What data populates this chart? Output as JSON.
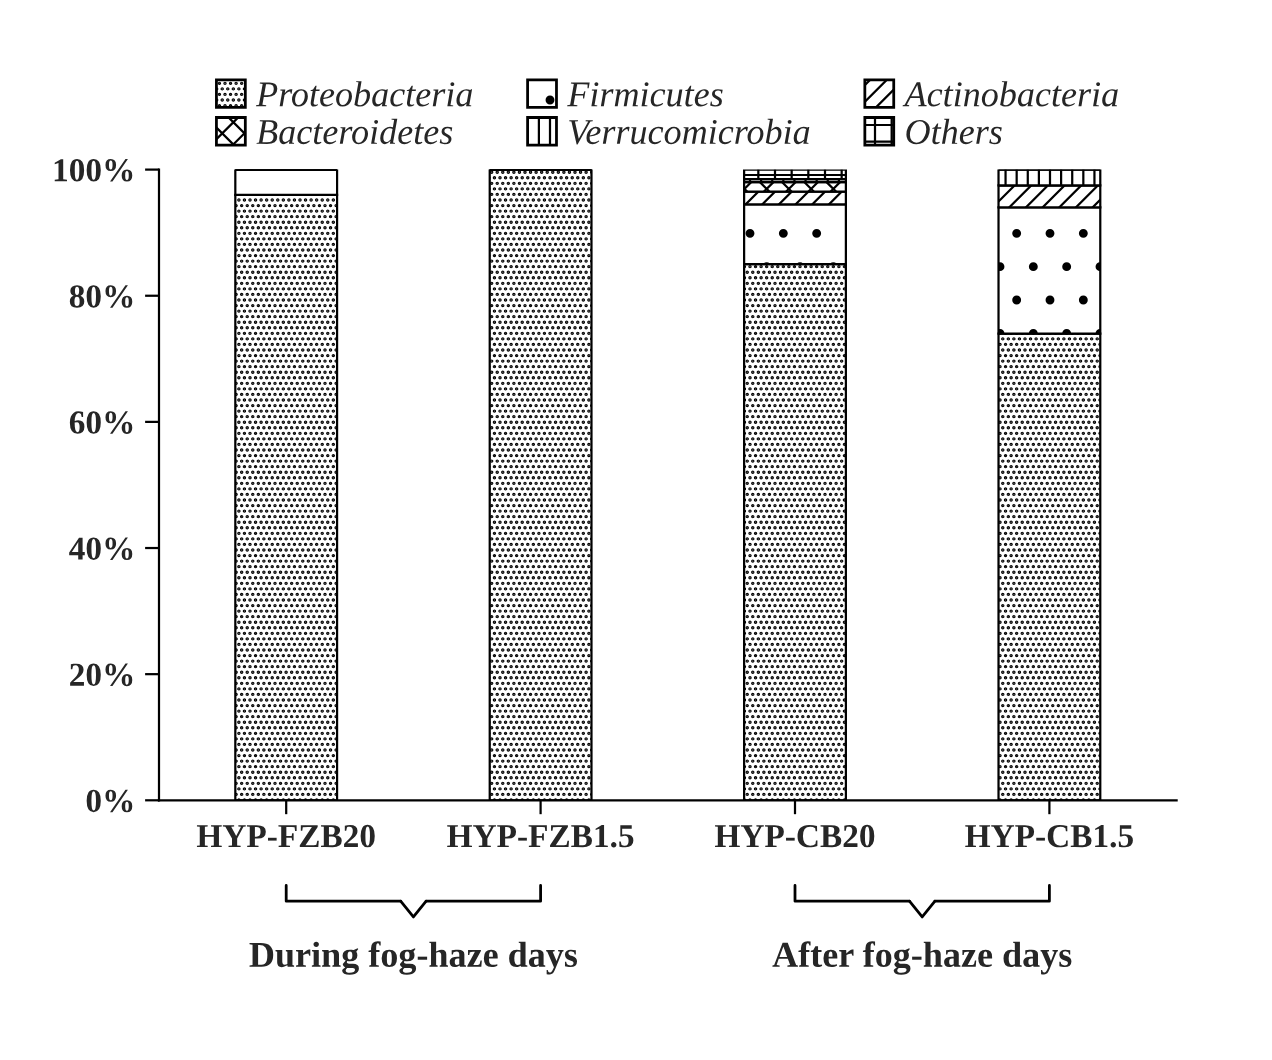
{
  "chart_data": {
    "type": "bar",
    "stacked": true,
    "categories": [
      "HYP-FZB20",
      "HYP-FZB1.5",
      "HYP-CB20",
      "HYP-CB1.5"
    ],
    "series": [
      {
        "name": "Proteobacteria",
        "values": [
          96,
          100,
          85,
          74
        ]
      },
      {
        "name": "Firmicutes",
        "values": [
          4,
          0,
          9.5,
          20
        ]
      },
      {
        "name": "Actinobacteria",
        "values": [
          0,
          0,
          2,
          3.5
        ]
      },
      {
        "name": "Bacteroidetes",
        "values": [
          0,
          0,
          1.5,
          0
        ]
      },
      {
        "name": "Verrucomicrobia",
        "values": [
          0,
          0,
          0.5,
          2.5
        ]
      },
      {
        "name": "Others",
        "values": [
          0,
          0,
          1.5,
          0
        ]
      }
    ],
    "ylim": [
      0,
      100
    ],
    "yticks": [
      {
        "value": 0,
        "label": "0%"
      },
      {
        "value": 20,
        "label": "20%"
      },
      {
        "value": 40,
        "label": "40%"
      },
      {
        "value": 60,
        "label": "60%"
      },
      {
        "value": 80,
        "label": "80%"
      },
      {
        "value": 100,
        "label": "100%"
      }
    ],
    "grid": false,
    "legend": "top",
    "annotations": [
      "During fog-haze days",
      "After fog-haze days"
    ]
  }
}
